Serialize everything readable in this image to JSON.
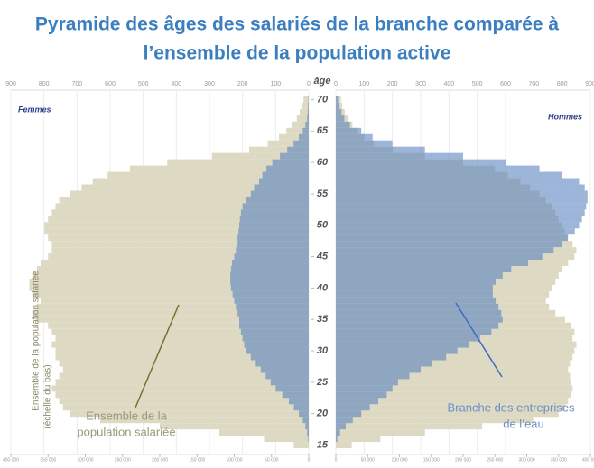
{
  "chart_data": {
    "type": "pyramid",
    "title_lines": [
      "Pyramide des âges des salariés de la branche comparée à",
      "l’ensemble de la population active"
    ],
    "age_label": "âge",
    "categories": [
      15,
      16,
      17,
      18,
      19,
      20,
      21,
      22,
      23,
      24,
      25,
      26,
      27,
      28,
      29,
      30,
      31,
      32,
      33,
      34,
      35,
      36,
      37,
      38,
      39,
      40,
      41,
      42,
      43,
      44,
      45,
      46,
      47,
      48,
      49,
      50,
      51,
      52,
      53,
      54,
      55,
      56,
      57,
      58,
      59,
      60,
      61,
      62,
      63,
      64,
      65,
      66,
      67,
      68,
      69,
      70
    ],
    "ylim": [
      13.5,
      71.5
    ],
    "yticks": [
      15,
      20,
      25,
      30,
      35,
      40,
      45,
      50,
      55,
      60,
      65,
      70
    ],
    "left": {
      "label": "Femmes",
      "xlim": [
        0,
        900
      ],
      "xticks": [
        900,
        800,
        700,
        600,
        500,
        400,
        300,
        200,
        100,
        0
      ],
      "x2lim": [
        0,
        400000
      ],
      "x2ticks": [
        {
          "value": 400000,
          "label": "400 000"
        },
        {
          "value": 350000,
          "label": "350 000"
        },
        {
          "value": 300000,
          "label": "300 000"
        },
        {
          "value": 250000,
          "label": "250 000"
        },
        {
          "value": 200000,
          "label": "200 000"
        },
        {
          "value": 150000,
          "label": "150 000"
        },
        {
          "value": 100000,
          "label": "100 000"
        },
        {
          "value": 50000,
          "label": "50 000"
        },
        0
      ],
      "series": [
        {
          "color": "#ddd9c3",
          "axis": "x2",
          "values": [
            20000,
            60000,
            120000,
            200000,
            280000,
            320000,
            330000,
            335000,
            340000,
            345000,
            340000,
            335000,
            330000,
            335000,
            340000,
            340000,
            345000,
            340000,
            345000,
            350000,
            365000,
            370000,
            365000,
            360000,
            370000,
            375000,
            375000,
            370000,
            365000,
            360000,
            350000,
            345000,
            345000,
            350000,
            355000,
            355000,
            350000,
            345000,
            340000,
            335000,
            320000,
            305000,
            290000,
            270000,
            240000,
            190000,
            130000,
            80000,
            55000,
            40000,
            30000,
            22000,
            16000,
            12000,
            9000,
            7000
          ]
        },
        {
          "color": "#5b84c0",
          "axis": "x",
          "values": [
            0,
            2,
            5,
            10,
            18,
            30,
            45,
            60,
            80,
            100,
            115,
            130,
            145,
            160,
            175,
            190,
            195,
            200,
            205,
            210,
            210,
            215,
            220,
            225,
            230,
            235,
            237,
            237,
            235,
            232,
            225,
            220,
            215,
            215,
            212,
            210,
            208,
            205,
            200,
            190,
            175,
            165,
            150,
            140,
            128,
            110,
            87,
            65,
            46,
            30,
            18,
            10,
            5,
            3,
            2,
            1
          ]
        }
      ]
    },
    "right": {
      "label": "Hommes",
      "xlim": [
        0,
        900
      ],
      "xticks": [
        0,
        100,
        200,
        300,
        400,
        500,
        600,
        700,
        800,
        900
      ],
      "x2lim": [
        0,
        400000
      ],
      "x2ticks": [
        0,
        {
          "value": 50000,
          "label": "50 000"
        },
        {
          "value": 100000,
          "label": "100 000"
        },
        {
          "value": 150000,
          "label": "150 000"
        },
        {
          "value": 200000,
          "label": "200 000"
        },
        {
          "value": 250000,
          "label": "250 000"
        },
        {
          "value": 300000,
          "label": "300 000"
        },
        {
          "value": 350000,
          "label": "350 000"
        },
        {
          "value": 400000,
          "label": "400 000"
        }
      ],
      "series": [
        {
          "color": "#ddd9c3",
          "axis": "x2",
          "values": [
            25000,
            70000,
            140000,
            230000,
            310000,
            350000,
            360000,
            365000,
            370000,
            372000,
            370000,
            368000,
            365000,
            368000,
            372000,
            375000,
            378000,
            372000,
            375000,
            370000,
            360000,
            345000,
            335000,
            330000,
            335000,
            340000,
            345000,
            350000,
            355000,
            365000,
            375000,
            378000,
            372000,
            365000,
            360000,
            355000,
            350000,
            345000,
            340000,
            330000,
            320000,
            305000,
            290000,
            270000,
            250000,
            200000,
            140000,
            90000,
            60000,
            45000,
            35000,
            26000,
            19000,
            14000,
            10000,
            8000
          ]
        },
        {
          "color": "#5b84c0",
          "axis": "x",
          "values": [
            0,
            5,
            15,
            35,
            60,
            90,
            120,
            150,
            180,
            200,
            220,
            260,
            300,
            340,
            390,
            430,
            470,
            510,
            550,
            575,
            590,
            585,
            575,
            565,
            555,
            555,
            565,
            590,
            620,
            680,
            730,
            770,
            800,
            820,
            845,
            860,
            870,
            880,
            885,
            890,
            890,
            880,
            860,
            800,
            720,
            600,
            450,
            315,
            200,
            130,
            90,
            50,
            30,
            20,
            12,
            8
          ]
        }
      ]
    },
    "annotations": [
      "Ensemble de la",
      "population salariée",
      "Branche des entreprises",
      "de l’eau",
      "Ensemble de la population salariée",
      "(échelle du bas)"
    ]
  }
}
